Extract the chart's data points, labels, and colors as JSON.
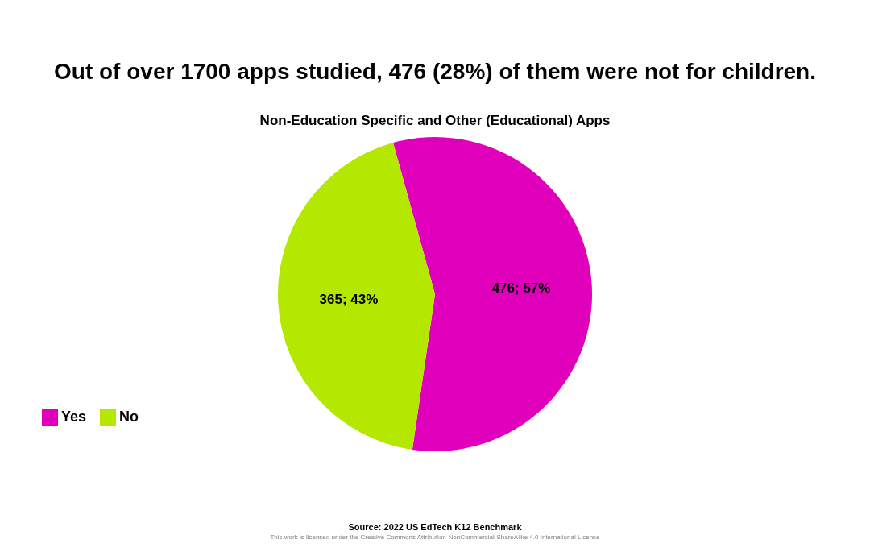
{
  "chart_data": {
    "type": "pie",
    "title": "Out of over 1700 apps studied, 476 (28%) of them were not for children.",
    "subtitle": "Non-Education Specific and Other (Educational) Apps",
    "categories": [
      "Yes",
      "No"
    ],
    "values": [
      476,
      365
    ],
    "colors": [
      "#e000bb",
      "#b4e800"
    ],
    "value_labels": [
      "476; 57%",
      "365; 43%"
    ],
    "legend": "bottom left",
    "annotations": [
      "Source: 2022 US EdTech K12 Benchmark",
      "This work is licensed under the Creative Commons Attribution-NonCommercial-ShareAlike 4.0 International License"
    ]
  }
}
